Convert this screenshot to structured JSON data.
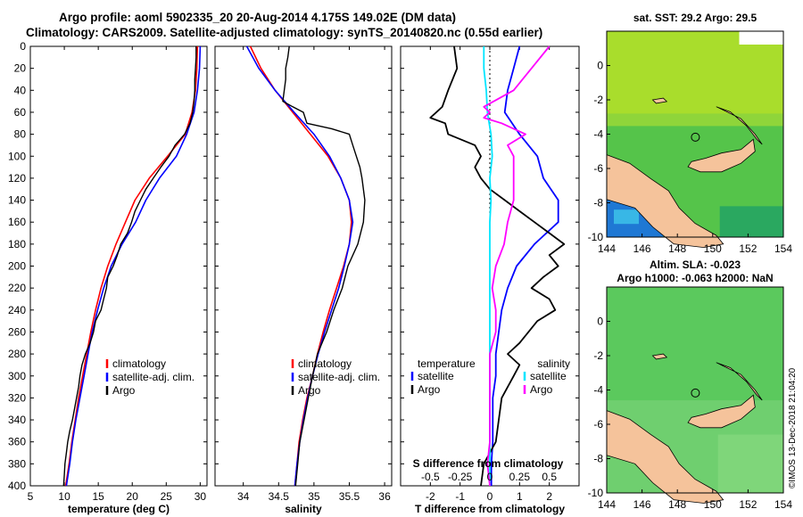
{
  "header": {
    "line1": "Argo profile: aoml 5902335_20 20-Aug-2014 4.175S 149.02E (DM data)",
    "line2": "Climatology: CARS2009. Satellite-adjusted climatology: synTS_20140820.nc (0.55d earlier)"
  },
  "credit": "©IMOS 13-Dec-2018 21:04:20",
  "colors": {
    "climatology": "#ff0000",
    "satellite": "#0000ff",
    "argo": "#000000",
    "salinity_argo": "#ff00ff",
    "salinity_sat": "#00e5ff",
    "land": "#f5c39b"
  },
  "chart_data": [
    {
      "type": "line",
      "name": "temperature-profile",
      "xlabel": "temperature (deg C)",
      "ylabel": "",
      "xlim": [
        5,
        31
      ],
      "ylim": [
        400,
        0
      ],
      "xticks": [
        5,
        10,
        15,
        20,
        25,
        30
      ],
      "yticks": [
        0,
        20,
        40,
        60,
        80,
        100,
        120,
        140,
        160,
        180,
        200,
        220,
        240,
        260,
        280,
        300,
        320,
        340,
        360,
        380,
        400
      ],
      "legend": [
        "climatology",
        "satellite-adj. clim.",
        "Argo"
      ],
      "series": [
        {
          "name": "climatology",
          "pressure": [
            0,
            20,
            40,
            60,
            80,
            100,
            120,
            140,
            160,
            180,
            200,
            220,
            240,
            260,
            280,
            300,
            320,
            340,
            360,
            380,
            400
          ],
          "values": [
            29.6,
            29.5,
            29.3,
            28.8,
            27.8,
            25.2,
            22.5,
            20.4,
            19.0,
            17.6,
            16.4,
            15.4,
            14.6,
            13.9,
            13.3,
            12.7,
            12.1,
            11.6,
            11.1,
            10.7,
            10.2
          ]
        },
        {
          "name": "satellite-adj. clim.",
          "pressure": [
            0,
            20,
            40,
            60,
            80,
            100,
            120,
            140,
            160,
            180,
            200,
            220,
            240,
            260,
            280,
            300,
            320,
            340,
            360,
            380,
            400
          ],
          "values": [
            30.0,
            29.9,
            29.6,
            29.1,
            28.0,
            26.5,
            24.0,
            22.0,
            20.5,
            18.5,
            16.9,
            15.8,
            14.9,
            14.1,
            13.5,
            12.9,
            12.3,
            11.7,
            11.2,
            10.8,
            10.3
          ]
        },
        {
          "name": "Argo",
          "pressure": [
            0,
            10,
            20,
            30,
            40,
            50,
            60,
            70,
            80,
            90,
            100,
            110,
            120,
            130,
            140,
            150,
            160,
            170,
            180,
            190,
            200,
            210,
            220,
            230,
            240,
            250,
            260,
            270,
            280,
            290,
            300,
            310,
            320,
            330,
            340,
            350,
            360,
            370,
            380,
            390,
            400
          ],
          "values": [
            29.4,
            29.4,
            29.3,
            29.2,
            29.2,
            29.1,
            28.9,
            28.5,
            27.7,
            26.3,
            25.4,
            24.2,
            23.1,
            22.0,
            21.2,
            20.4,
            19.9,
            19.3,
            18.3,
            17.8,
            17.2,
            16.4,
            16.2,
            15.8,
            15.4,
            14.6,
            14.3,
            13.8,
            13.1,
            12.6,
            12.3,
            12.1,
            11.8,
            11.5,
            11.2,
            10.8,
            10.5,
            10.3,
            10.1,
            10.0,
            9.9
          ]
        }
      ]
    },
    {
      "type": "line",
      "name": "salinity-profile",
      "xlabel": "salinity",
      "xlim": [
        33.6,
        36.1
      ],
      "ylim": [
        400,
        0
      ],
      "xticks": [
        34,
        34.5,
        35,
        35.5,
        36
      ],
      "legend": [
        "climatology",
        "satellite-adj. clim.",
        "Argo"
      ],
      "series": [
        {
          "name": "climatology",
          "pressure": [
            0,
            20,
            40,
            60,
            80,
            100,
            120,
            140,
            160,
            180,
            200,
            220,
            240,
            260,
            280,
            300,
            320,
            340,
            360,
            380,
            400
          ],
          "values": [
            34.1,
            34.25,
            34.45,
            34.7,
            34.95,
            35.2,
            35.38,
            35.5,
            35.53,
            35.5,
            35.42,
            35.32,
            35.22,
            35.13,
            35.05,
            34.98,
            34.9,
            34.84,
            34.79,
            34.76,
            34.73
          ]
        },
        {
          "name": "satellite-adj. clim.",
          "pressure": [
            0,
            20,
            40,
            60,
            80,
            100,
            120,
            140,
            160,
            180,
            200,
            220,
            240,
            260,
            280,
            300,
            320,
            340,
            360,
            380,
            400
          ],
          "values": [
            34.05,
            34.22,
            34.45,
            34.72,
            35.0,
            35.22,
            35.38,
            35.5,
            35.55,
            35.5,
            35.43,
            35.35,
            35.25,
            35.15,
            35.06,
            34.98,
            34.91,
            34.85,
            34.8,
            34.76,
            34.73
          ]
        },
        {
          "name": "Argo",
          "pressure": [
            0,
            10,
            20,
            30,
            40,
            50,
            55,
            60,
            70,
            75,
            80,
            90,
            100,
            110,
            120,
            140,
            160,
            180,
            200,
            220,
            240,
            260,
            280,
            300,
            320,
            340,
            360,
            380,
            400
          ],
          "values": [
            34.65,
            34.63,
            34.6,
            34.6,
            34.58,
            34.56,
            34.7,
            34.85,
            34.9,
            35.25,
            35.5,
            35.55,
            35.6,
            35.65,
            35.68,
            35.72,
            35.7,
            35.62,
            35.48,
            35.4,
            35.28,
            35.18,
            35.05,
            34.98,
            34.92,
            34.86,
            34.8,
            34.77,
            34.74
          ]
        }
      ]
    },
    {
      "type": "line",
      "name": "difference-profile",
      "xlabel": "T difference from climatology",
      "xlim_T": [
        -3,
        3
      ],
      "ylim": [
        400,
        0
      ],
      "xticks_T": [
        -2,
        -1,
        0,
        1,
        2
      ],
      "top_axis_label": "S difference from climatology",
      "xticks_S_labels": [
        "-0.5",
        "-0.25",
        "0",
        "0.25",
        "0.5"
      ],
      "legend": {
        "temperature_title": "temperature",
        "salinity_title": "salinity",
        "items": [
          "satellite",
          "Argo",
          "satellite",
          "Argo"
        ]
      },
      "series": [
        {
          "name": "T satellite",
          "pressure": [
            0,
            20,
            40,
            60,
            80,
            100,
            120,
            140,
            160,
            180,
            200,
            220,
            240,
            260,
            280,
            300,
            320,
            340,
            360,
            380,
            400
          ],
          "values": [
            1.0,
            0.8,
            0.6,
            0.5,
            1.0,
            1.6,
            1.8,
            2.3,
            2.3,
            1.5,
            0.9,
            0.6,
            0.4,
            0.3,
            0.2,
            0.2,
            0.1,
            0.1,
            0.1,
            0.05,
            0.05
          ]
        },
        {
          "name": "T Argo",
          "pressure": [
            0,
            20,
            40,
            55,
            60,
            65,
            70,
            80,
            90,
            100,
            110,
            120,
            130,
            140,
            150,
            160,
            170,
            180,
            190,
            200,
            210,
            220,
            230,
            240,
            250,
            260,
            270,
            280,
            290,
            300,
            320,
            340,
            360,
            380,
            400
          ],
          "values": [
            -1.2,
            -1.1,
            -1.4,
            -1.6,
            -1.8,
            -2.0,
            -1.5,
            -1.4,
            -0.5,
            -0.3,
            -0.5,
            -0.3,
            0.0,
            0.5,
            1.0,
            1.5,
            2.0,
            2.5,
            2.0,
            2.3,
            1.8,
            1.4,
            2.0,
            2.2,
            1.6,
            1.3,
            1.0,
            0.6,
            1.0,
            0.8,
            0.4,
            0.3,
            0.2,
            -0.2,
            -0.3
          ]
        },
        {
          "name": "S satellite",
          "pressure": [
            0,
            20,
            40,
            60,
            80,
            100,
            120,
            140,
            160,
            180,
            200,
            220,
            240,
            260,
            280,
            300,
            320,
            340,
            360,
            380,
            400
          ],
          "values": [
            -0.05,
            -0.05,
            -0.03,
            -0.02,
            0.01,
            0.02,
            0.0,
            0.01,
            0.0,
            0.0,
            0.0,
            0.0,
            0.0,
            0.0,
            0.0,
            0.0,
            0.0,
            0.0,
            0.0,
            0.0,
            0.0
          ]
        },
        {
          "name": "S Argo",
          "pressure": [
            0,
            20,
            40,
            55,
            60,
            65,
            70,
            80,
            90,
            100,
            120,
            140,
            160,
            180,
            200,
            220,
            240,
            260,
            280,
            300,
            320,
            340,
            360,
            380,
            400
          ],
          "values": [
            0.5,
            0.35,
            0.2,
            -0.05,
            0.0,
            -0.05,
            0.1,
            0.3,
            0.15,
            0.2,
            0.2,
            0.2,
            0.15,
            0.12,
            0.05,
            0.02,
            0.05,
            0.05,
            0.0,
            0.0,
            0.0,
            0.0,
            0.0,
            -0.02,
            0.0
          ]
        }
      ]
    },
    {
      "type": "heatmap",
      "name": "sst-map",
      "title": "sat. SST: 29.2 Argo: 29.5",
      "xlim": [
        144,
        154
      ],
      "ylim": [
        -10,
        2
      ],
      "xticks": [
        144,
        146,
        148,
        150,
        152,
        154
      ],
      "yticks": [
        0,
        -2,
        -4,
        -6,
        -8,
        -10
      ],
      "profile_location": [
        149.02,
        -4.175
      ]
    },
    {
      "type": "heatmap",
      "name": "sla-map",
      "title": "Altim. SLA: -0.023",
      "subtitle": "Argo h1000: -0.063 h2000: NaN",
      "xlim": [
        144,
        154
      ],
      "ylim": [
        -10,
        2
      ],
      "xticks": [
        144,
        146,
        148,
        150,
        152,
        154
      ],
      "yticks": [
        0,
        -2,
        -4,
        -6,
        -8,
        -10
      ],
      "profile_location": [
        149.02,
        -4.175
      ]
    }
  ]
}
